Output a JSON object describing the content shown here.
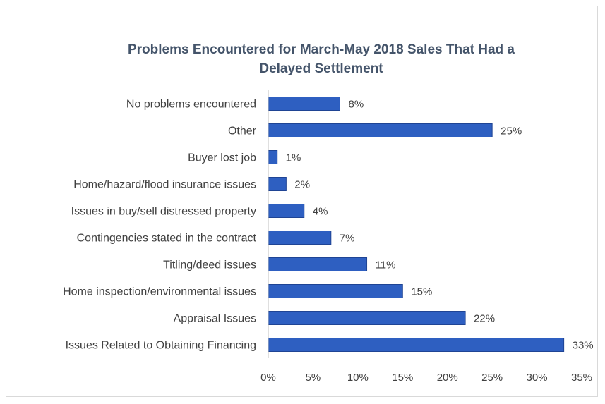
{
  "chart_data": {
    "type": "bar",
    "orientation": "horizontal",
    "title": "Problems Encountered for March-May 2018 Sales That Had a Delayed Settlement",
    "title_lines": [
      "Problems Encountered for March-May 2018 Sales That Had a",
      "Delayed Settlement"
    ],
    "categories": [
      "No problems encountered",
      "Other",
      "Buyer lost job",
      "Home/hazard/flood insurance issues",
      "Issues in buy/sell distressed property",
      "Contingencies stated in the contract",
      "Titling/deed issues",
      "Home inspection/environmental issues",
      "Appraisal Issues",
      "Issues Related to Obtaining Financing"
    ],
    "values": [
      8,
      25,
      1,
      2,
      4,
      7,
      11,
      15,
      22,
      33
    ],
    "data_labels": [
      "8%",
      "25%",
      "1%",
      "2%",
      "4%",
      "7%",
      "11%",
      "15%",
      "22%",
      "33%"
    ],
    "xlim": [
      0,
      35
    ],
    "x_ticks": [
      0,
      5,
      10,
      15,
      20,
      25,
      30,
      35
    ],
    "x_tick_labels": [
      "0%",
      "5%",
      "10%",
      "15%",
      "20%",
      "25%",
      "30%",
      "35%"
    ],
    "xlabel": "",
    "ylabel": "",
    "grid": false,
    "legend": "none",
    "bar_color": "#2e5fc1",
    "bar_stroke_color": "#1f4494",
    "title_color": "#44546a",
    "text_color": "#404040",
    "axis_color": "#bfbfbf"
  }
}
